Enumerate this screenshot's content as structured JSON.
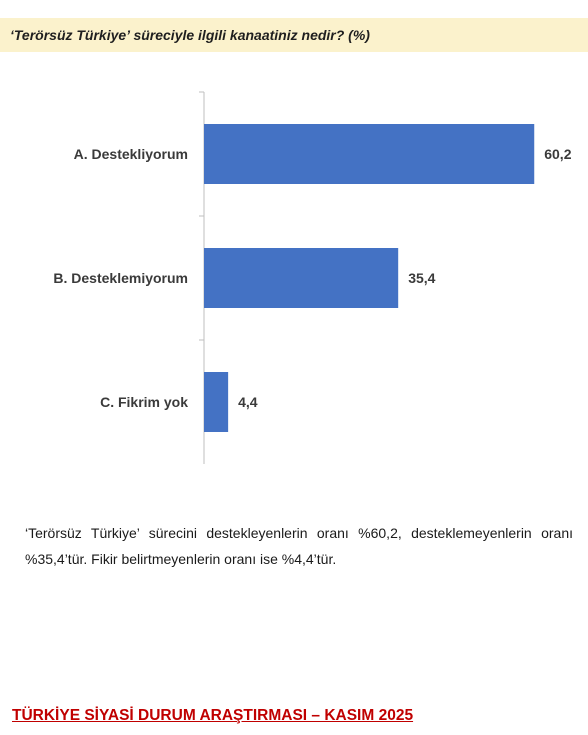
{
  "header": {
    "title": "‘Terörsüz Türkiye’ süreciyle ilgili kanaatiniz nedir? (%)"
  },
  "chart_data": {
    "type": "bar",
    "orientation": "horizontal",
    "categories": [
      "A. Destekliyorum",
      "B. Desteklemiyorum",
      "C. Fikrim yok"
    ],
    "values": [
      60.2,
      35.4,
      4.4
    ],
    "value_labels": [
      "60,2",
      "35,4",
      "4,4"
    ],
    "title": "‘Terörsüz Türkiye’ süreciyle ilgili kanaatiniz nedir? (%)",
    "xlabel": "",
    "ylabel": "",
    "xlim": [
      0,
      70
    ],
    "grid": false,
    "bar_color": "#4472c4"
  },
  "paragraph": {
    "text": "‘Terörsüz Türkiye’ sürecini destekleyenlerin oranı %60,2, desteklemeyenlerin oranı %35,4’tür. Fikir belirtmeyenlerin oranı ise %4,4’tür."
  },
  "footer": {
    "title": "TÜRKİYE SİYASİ DURUM ARAŞTIRMASI – KASIM 2025"
  }
}
